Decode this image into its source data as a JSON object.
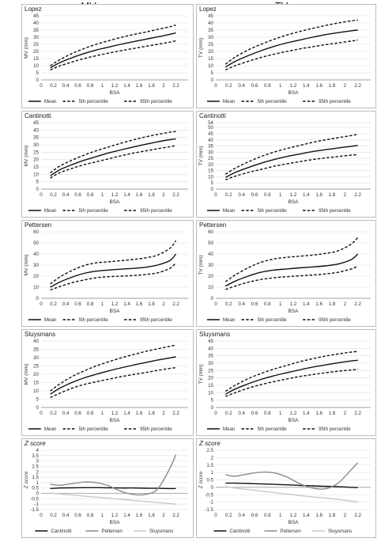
{
  "columns": {
    "mv": "MV",
    "tv": "TV"
  },
  "chart_data": [
    {
      "id": "mv-lopez",
      "type": "line",
      "title": "Lopez",
      "xlabel": "BSA",
      "ylabel": "MV (mm)",
      "xlim": [
        0,
        2.4
      ],
      "ylim": [
        0,
        45
      ],
      "yticks": [
        0,
        5,
        10,
        15,
        20,
        25,
        30,
        35,
        40,
        45
      ],
      "xticks": [
        0,
        0.2,
        0.4,
        0.6,
        0.8,
        1,
        1.2,
        1.4,
        1.6,
        1.8,
        2,
        2.2
      ],
      "x": [
        0.15,
        0.3,
        0.5,
        0.7,
        0.9,
        1.1,
        1.3,
        1.5,
        1.7,
        1.9,
        2.1,
        2.2
      ],
      "series": [
        {
          "name": "Mean",
          "style": "solid",
          "values": [
            8.5,
            12,
            15.5,
            18.5,
            21,
            23,
            25,
            26.8,
            28.5,
            30.2,
            32,
            33
          ]
        },
        {
          "name": "5th percentile",
          "style": "dashed",
          "values": [
            7,
            9.8,
            12.5,
            15,
            17,
            18.8,
            20.5,
            22,
            23.5,
            25,
            26.5,
            27.5
          ]
        },
        {
          "name": "95th percentile",
          "style": "dashed",
          "values": [
            10,
            14,
            18.5,
            22,
            25,
            27.5,
            29.8,
            31.8,
            33.5,
            35.5,
            37.3,
            38.5
          ]
        }
      ]
    },
    {
      "id": "tv-lopez",
      "type": "line",
      "title": "Lopez",
      "xlabel": "BSA",
      "ylabel": "TV (mm)",
      "xlim": [
        0,
        2.4
      ],
      "ylim": [
        0,
        45
      ],
      "yticks": [
        0,
        5,
        10,
        15,
        20,
        25,
        30,
        35,
        40,
        45
      ],
      "xticks": [
        0,
        0.2,
        0.4,
        0.6,
        0.8,
        1,
        1.2,
        1.4,
        1.6,
        1.8,
        2,
        2.2
      ],
      "x": [
        0.15,
        0.3,
        0.5,
        0.7,
        0.9,
        1.1,
        1.3,
        1.5,
        1.7,
        1.9,
        2.1,
        2.2
      ],
      "series": [
        {
          "name": "Mean",
          "style": "solid",
          "values": [
            9,
            13,
            17,
            20.5,
            23.5,
            26,
            28,
            30,
            31.8,
            33.2,
            34.5,
            35
          ]
        },
        {
          "name": "5th percentile",
          "style": "dashed",
          "values": [
            7,
            10,
            13,
            15.8,
            18,
            20,
            21.8,
            23.3,
            24.7,
            26,
            27.3,
            28
          ]
        },
        {
          "name": "95th percentile",
          "style": "dashed",
          "values": [
            11,
            16,
            21,
            25,
            28.5,
            31.5,
            34,
            36.2,
            38.2,
            40,
            41.5,
            42
          ]
        }
      ]
    },
    {
      "id": "mv-cantinotti",
      "type": "line",
      "title": "Cantinotti",
      "xlabel": "BSA",
      "ylabel": "MV (mm)",
      "xlim": [
        0,
        2.4
      ],
      "ylim": [
        0,
        45
      ],
      "yticks": [
        0,
        5,
        10,
        15,
        20,
        25,
        30,
        35,
        40,
        45
      ],
      "xticks": [
        0,
        0.2,
        0.4,
        0.6,
        0.8,
        1,
        1.2,
        1.4,
        1.6,
        1.8,
        2,
        2.2
      ],
      "x": [
        0.15,
        0.3,
        0.5,
        0.7,
        0.9,
        1.1,
        1.3,
        1.5,
        1.7,
        1.9,
        2.1,
        2.2
      ],
      "series": [
        {
          "name": "Mean",
          "style": "solid",
          "values": [
            9,
            13,
            16.5,
            19.5,
            22,
            24.5,
            26.5,
            28.5,
            30.3,
            32,
            33.5,
            34
          ]
        },
        {
          "name": "5th percentile",
          "style": "dashed",
          "values": [
            7.5,
            11,
            14,
            16.5,
            18.5,
            20.5,
            22.5,
            24.3,
            25.8,
            27.3,
            28.7,
            29.5
          ]
        },
        {
          "name": "95th percentile",
          "style": "dashed",
          "values": [
            11,
            15.5,
            19.5,
            23,
            26,
            28.5,
            31,
            33.3,
            35.3,
            37,
            38.5,
            39
          ]
        }
      ]
    },
    {
      "id": "tv-cantinotti",
      "type": "line",
      "title": "Cantinotti",
      "xlabel": "BSA",
      "ylabel": "TV (mm)",
      "xlim": [
        0,
        2.4
      ],
      "ylim": [
        0,
        54
      ],
      "yticks": [
        0,
        5,
        10,
        15,
        20,
        25,
        30,
        35,
        40,
        45,
        50,
        54
      ],
      "xticks": [
        0,
        0.2,
        0.4,
        0.6,
        0.8,
        1,
        1.2,
        1.4,
        1.6,
        1.8,
        2,
        2.2
      ],
      "x": [
        0.15,
        0.3,
        0.5,
        0.7,
        0.9,
        1.1,
        1.3,
        1.5,
        1.7,
        1.9,
        2.1,
        2.2
      ],
      "series": [
        {
          "name": "Mean",
          "style": "solid",
          "values": [
            9.5,
            13.5,
            17.5,
            21,
            24,
            26.5,
            28.5,
            30.5,
            32,
            33.5,
            34.8,
            35.5
          ]
        },
        {
          "name": "5th percentile",
          "style": "dashed",
          "values": [
            7.5,
            10.5,
            13.5,
            16,
            18.5,
            20.5,
            22.3,
            24,
            25.3,
            26.5,
            27.6,
            28
          ]
        },
        {
          "name": "95th percentile",
          "style": "dashed",
          "values": [
            12,
            17,
            22,
            26.5,
            30,
            33,
            35.5,
            38,
            40,
            41.8,
            43.5,
            44.5
          ]
        }
      ]
    },
    {
      "id": "mv-pettersen",
      "type": "line",
      "title": "Pettersen",
      "xlabel": "BSA",
      "ylabel": "MV (mm)",
      "xlim": [
        0,
        2.4
      ],
      "ylim": [
        0,
        60
      ],
      "yticks": [
        0,
        10,
        20,
        30,
        40,
        50,
        60
      ],
      "xticks": [
        0,
        0.2,
        0.4,
        0.6,
        0.8,
        1,
        1.2,
        1.4,
        1.6,
        1.8,
        2,
        2.2
      ],
      "x": [
        0.15,
        0.3,
        0.5,
        0.7,
        0.9,
        1.1,
        1.3,
        1.5,
        1.7,
        1.9,
        2.1,
        2.2
      ],
      "series": [
        {
          "name": "Mean",
          "style": "solid",
          "values": [
            10,
            14.5,
            19,
            22.5,
            24.5,
            25.5,
            26.3,
            27,
            28,
            30,
            34,
            40
          ]
        },
        {
          "name": "5th percentile",
          "style": "dashed",
          "values": [
            7.5,
            10.5,
            14,
            16.5,
            18.5,
            19.5,
            20,
            20.5,
            21.5,
            23,
            27,
            32
          ]
        },
        {
          "name": "95th percentile",
          "style": "dashed",
          "values": [
            13,
            19,
            25,
            29.5,
            32,
            33,
            34,
            35,
            36.5,
            39,
            45,
            52
          ]
        }
      ]
    },
    {
      "id": "tv-pettersen",
      "type": "line",
      "title": "Pettersen",
      "xlabel": "BSA",
      "ylabel": "TV (mm)",
      "xlim": [
        0,
        2.4
      ],
      "ylim": [
        0,
        60
      ],
      "yticks": [
        0,
        10,
        20,
        30,
        40,
        50,
        60
      ],
      "xticks": [
        0,
        0.2,
        0.4,
        0.6,
        0.8,
        1,
        1.2,
        1.4,
        1.6,
        1.8,
        2,
        2.2
      ],
      "x": [
        0.15,
        0.3,
        0.5,
        0.7,
        0.9,
        1.1,
        1.3,
        1.5,
        1.7,
        1.9,
        2.1,
        2.2
      ],
      "series": [
        {
          "name": "Mean",
          "style": "solid",
          "values": [
            11,
            15.5,
            20,
            23.5,
            25.5,
            26.5,
            27.5,
            28.3,
            29.3,
            31,
            35,
            40
          ]
        },
        {
          "name": "5th percentile",
          "style": "dashed",
          "values": [
            8,
            11,
            14.5,
            17,
            18.5,
            19.5,
            20.3,
            21,
            22,
            23.5,
            26.5,
            29
          ]
        },
        {
          "name": "95th percentile",
          "style": "dashed",
          "values": [
            15,
            21,
            27.5,
            32.5,
            35.5,
            37,
            38,
            39,
            40.5,
            43,
            49,
            55
          ]
        }
      ]
    },
    {
      "id": "mv-sluysmans",
      "type": "line",
      "title": "Sluysmans",
      "xlabel": "BSA",
      "ylabel": "MV (mm)",
      "xlim": [
        0,
        2.4
      ],
      "ylim": [
        0,
        40
      ],
      "yticks": [
        0,
        5,
        10,
        15,
        20,
        25,
        30,
        35,
        40
      ],
      "xticks": [
        0,
        0.2,
        0.4,
        0.6,
        0.8,
        1,
        1.2,
        1.4,
        1.6,
        1.8,
        2,
        2.2
      ],
      "x": [
        0.15,
        0.3,
        0.5,
        0.7,
        0.9,
        1.1,
        1.3,
        1.5,
        1.7,
        1.9,
        2.1,
        2.2
      ],
      "series": [
        {
          "name": "Mean",
          "style": "solid",
          "values": [
            8,
            11.5,
            15,
            17.8,
            20,
            22,
            23.8,
            25.5,
            27,
            28.5,
            29.8,
            30.5
          ]
        },
        {
          "name": "5th percentile",
          "style": "dashed",
          "values": [
            6,
            8.5,
            11.5,
            13.8,
            15.5,
            17,
            18.5,
            19.8,
            21,
            22.3,
            23.5,
            24
          ]
        },
        {
          "name": "95th percentile",
          "style": "dashed",
          "values": [
            10,
            14,
            18.5,
            22,
            25,
            27.5,
            29.8,
            31.8,
            33.7,
            35.3,
            36.8,
            37.5
          ]
        }
      ]
    },
    {
      "id": "tv-sluysmans",
      "type": "line",
      "title": "Sluysmans",
      "xlabel": "BSA",
      "ylabel": "TV (mm)",
      "xlim": [
        0,
        2.4
      ],
      "ylim": [
        0,
        45
      ],
      "yticks": [
        0,
        5,
        10,
        15,
        20,
        25,
        30,
        35,
        40,
        45
      ],
      "xticks": [
        0,
        0.2,
        0.4,
        0.6,
        0.8,
        1,
        1.2,
        1.4,
        1.6,
        1.8,
        2,
        2.2
      ],
      "x": [
        0.15,
        0.3,
        0.5,
        0.7,
        0.9,
        1.1,
        1.3,
        1.5,
        1.7,
        1.9,
        2.1,
        2.2
      ],
      "series": [
        {
          "name": "Mean",
          "style": "solid",
          "values": [
            9,
            12.5,
            16,
            19,
            21.5,
            23.5,
            25.5,
            27.3,
            28.8,
            30.3,
            31.5,
            32
          ]
        },
        {
          "name": "5th percentile",
          "style": "dashed",
          "values": [
            7.5,
            10,
            13,
            15.5,
            17.5,
            19.3,
            21,
            22.3,
            23.5,
            24.6,
            25.4,
            26
          ]
        },
        {
          "name": "95th percentile",
          "style": "dashed",
          "values": [
            11,
            15,
            19.5,
            23,
            26,
            28.5,
            31,
            33,
            34.8,
            36.3,
            37.5,
            38
          ]
        }
      ]
    },
    {
      "id": "mv-zscore",
      "type": "line",
      "title": "Z score",
      "xlabel": "BSA",
      "ylabel": "Z score",
      "xlim": [
        0,
        2.4
      ],
      "ylim": [
        -1.5,
        4
      ],
      "yticks": [
        -1.5,
        -1,
        -0.5,
        0,
        0.5,
        1,
        1.5,
        2,
        2.5,
        3,
        3.5,
        4
      ],
      "xticks": [
        0,
        0.2,
        0.4,
        0.6,
        0.8,
        1,
        1.2,
        1.4,
        1.6,
        1.8,
        2,
        2.2
      ],
      "x": [
        0.15,
        0.3,
        0.5,
        0.7,
        0.9,
        1.1,
        1.3,
        1.5,
        1.7,
        1.9,
        2.1,
        2.2
      ],
      "series": [
        {
          "name": "Cantinotti",
          "style": "solid",
          "color": "#111111",
          "values": [
            0.45,
            0.5,
            0.52,
            0.53,
            0.53,
            0.52,
            0.5,
            0.5,
            0.48,
            0.47,
            0.45,
            0.45
          ]
        },
        {
          "name": "Pettersen",
          "style": "solid",
          "color": "#8c8c8c",
          "values": [
            0.85,
            0.75,
            0.9,
            1.05,
            1.0,
            0.7,
            0.2,
            -0.1,
            -0.1,
            0.4,
            2.3,
            3.6
          ]
        },
        {
          "name": "Sluysmans",
          "style": "solid",
          "color": "#c8c8c8",
          "values": [
            0.05,
            -0.05,
            -0.15,
            -0.25,
            -0.35,
            -0.45,
            -0.55,
            -0.65,
            -0.75,
            -0.85,
            -0.95,
            -1.0
          ]
        }
      ]
    },
    {
      "id": "tv-zscore",
      "type": "line",
      "title": "Z score",
      "xlabel": "BSA",
      "ylabel": "Z score",
      "xlim": [
        0,
        2.4
      ],
      "ylim": [
        -1.5,
        2.5
      ],
      "yticks": [
        -1.5,
        -1,
        -0.5,
        0,
        0.5,
        1,
        1.5,
        2,
        2.5
      ],
      "xticks": [
        0,
        0.2,
        0.4,
        0.6,
        0.8,
        1,
        1.2,
        1.4,
        1.6,
        1.8,
        2,
        2.2
      ],
      "x": [
        0.15,
        0.3,
        0.5,
        0.7,
        0.9,
        1.1,
        1.3,
        1.5,
        1.7,
        1.9,
        2.1,
        2.2
      ],
      "series": [
        {
          "name": "Cantinotti",
          "style": "solid",
          "color": "#111111",
          "values": [
            0.28,
            0.28,
            0.26,
            0.23,
            0.2,
            0.17,
            0.13,
            0.1,
            0.07,
            0.04,
            0.0,
            -0.02
          ]
        },
        {
          "name": "Pettersen",
          "style": "solid",
          "color": "#8c8c8c",
          "values": [
            0.85,
            0.75,
            0.9,
            1.02,
            0.98,
            0.7,
            0.25,
            -0.05,
            -0.1,
            0.3,
            1.2,
            1.65
          ]
        },
        {
          "name": "Sluysmans",
          "style": "solid",
          "color": "#c8c8c8",
          "values": [
            0.05,
            -0.05,
            -0.15,
            -0.25,
            -0.35,
            -0.45,
            -0.55,
            -0.65,
            -0.73,
            -0.82,
            -0.92,
            -1.0
          ]
        }
      ]
    }
  ]
}
